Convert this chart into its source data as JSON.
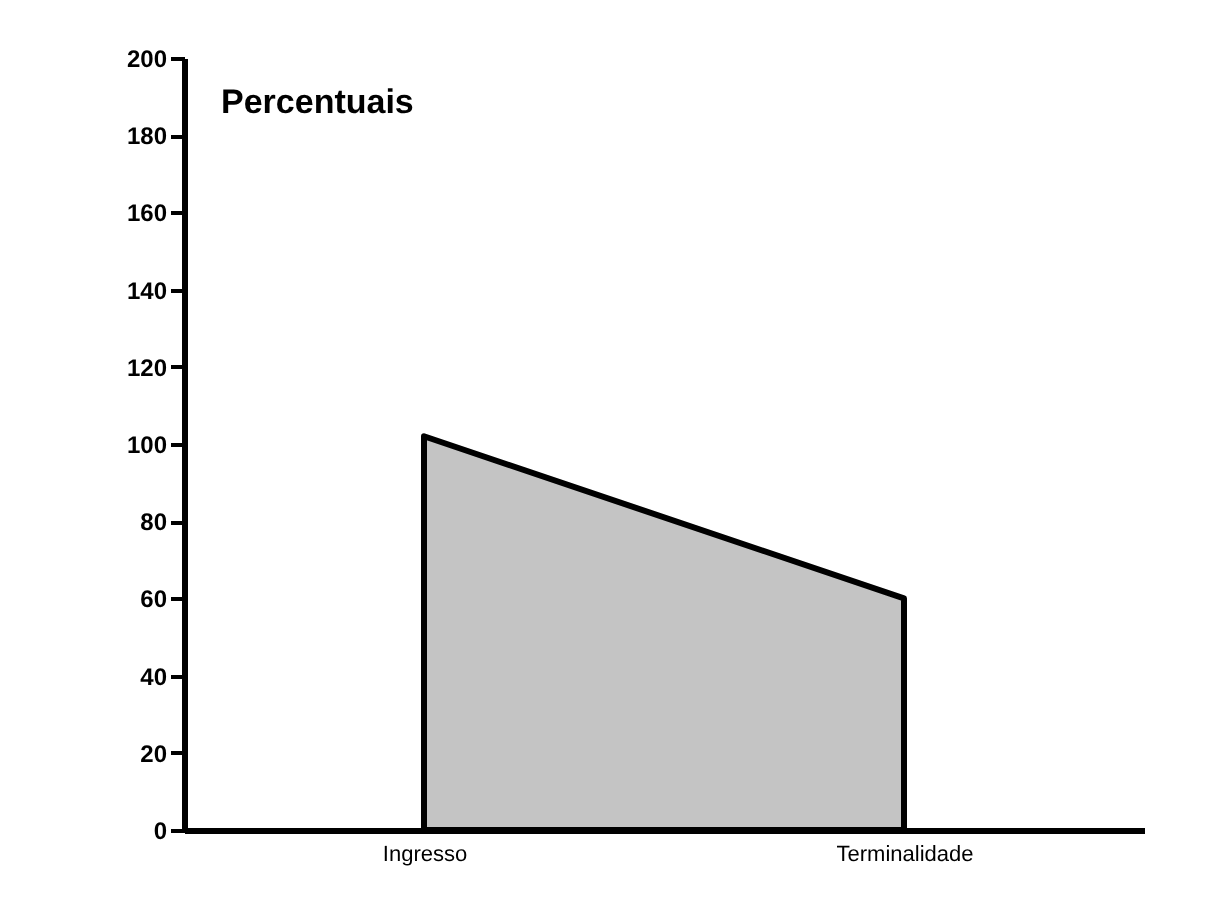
{
  "chart_data": {
    "type": "area",
    "ylabel": "Percentuais",
    "categories": [
      "Ingresso",
      "Terminalidade"
    ],
    "series": [
      {
        "color": "#c4c4c4",
        "values": [
          102,
          60
        ]
      }
    ],
    "ylim": [
      0,
      200
    ],
    "yticks": [
      0,
      20,
      40,
      60,
      80,
      100,
      120,
      140,
      160,
      180,
      200
    ],
    "grid": false
  }
}
